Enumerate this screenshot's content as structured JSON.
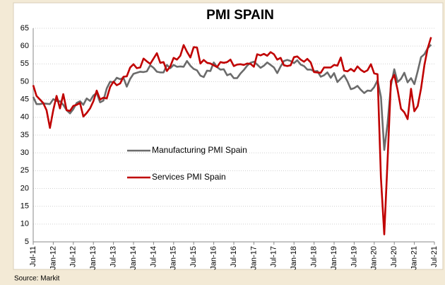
{
  "chart_data": {
    "type": "line",
    "title": "PMI SPAIN",
    "source": "Source: Markit",
    "categories": [
      "Jul-11",
      null,
      null,
      null,
      null,
      null,
      "Jan-12",
      null,
      null,
      null,
      null,
      null,
      "Jul-12",
      null,
      null,
      null,
      null,
      null,
      "Jan-13",
      null,
      null,
      null,
      null,
      null,
      "Jul-13",
      null,
      null,
      null,
      null,
      null,
      "Jan-14",
      null,
      null,
      null,
      null,
      null,
      "Jul-14",
      null,
      null,
      null,
      null,
      null,
      "Jan-15",
      null,
      null,
      null,
      null,
      null,
      "Jul-15",
      null,
      null,
      null,
      null,
      null,
      "Jan-16",
      null,
      null,
      null,
      null,
      null,
      "Jul-16",
      null,
      null,
      null,
      null,
      null,
      "Jan-17",
      null,
      null,
      null,
      null,
      null,
      "Jul-17",
      null,
      null,
      null,
      null,
      null,
      "Jan-18",
      null,
      null,
      null,
      null,
      null,
      "Jul-18",
      null,
      null,
      null,
      null,
      null,
      "Jan-19",
      null,
      null,
      null,
      null,
      null,
      "Jul-19",
      null,
      null,
      null,
      null,
      null,
      "Jan-20",
      null,
      null,
      null,
      null,
      null,
      "Jul-20",
      null,
      null,
      null,
      null,
      null,
      "Jan-21",
      null,
      null,
      null,
      null,
      null,
      "Jul-21"
    ],
    "series": [
      {
        "name": "Manufacturing PMI Spain",
        "color": "#6b6b6b",
        "values": [
          45.7,
          43.7,
          43.7,
          43.9,
          43.8,
          43.7,
          45.1,
          44.6,
          44.5,
          43.5,
          42.0,
          41.1,
          42.3,
          44.0,
          44.5,
          43.5,
          45.3,
          44.6,
          46.1,
          46.8,
          44.2,
          44.7,
          48.1,
          50.0,
          49.8,
          51.1,
          50.7,
          51.1,
          48.6,
          50.8,
          52.2,
          52.5,
          52.8,
          52.7,
          52.9,
          54.6,
          53.9,
          52.8,
          52.6,
          52.6,
          54.7,
          53.8,
          54.7,
          54.2,
          54.3,
          54.2,
          55.8,
          54.5,
          53.6,
          53.2,
          51.7,
          51.3,
          53.1,
          53.0,
          55.4,
          54.1,
          53.4,
          53.5,
          51.8,
          52.2,
          51.0,
          51.0,
          52.3,
          53.3,
          54.5,
          55.3,
          55.6,
          54.8,
          53.9,
          54.5,
          55.4,
          54.7,
          54.0,
          52.4,
          54.3,
          55.8,
          56.1,
          55.8,
          55.2,
          56.0,
          54.8,
          54.4,
          53.4,
          53.4,
          52.9,
          53.0,
          51.4,
          51.8,
          52.6,
          51.1,
          52.4,
          49.9,
          50.9,
          51.8,
          50.1,
          47.9,
          48.2,
          48.8,
          47.7,
          46.8,
          47.5,
          47.4,
          48.5,
          50.4,
          45.7,
          30.8,
          38.3,
          49.0,
          53.5,
          49.9,
          50.8,
          52.5,
          49.8,
          51.0,
          49.3,
          52.9,
          56.9,
          57.7,
          59.4,
          60.4,
          null
        ]
      },
      {
        "name": "Services PMI Spain",
        "color": "#c00000",
        "values": [
          49.0,
          46.0,
          45.0,
          44.0,
          42.0,
          37.0,
          42.0,
          46.0,
          42.5,
          46.5,
          42.0,
          41.8,
          43.2,
          43.5,
          44.0,
          40.2,
          41.2,
          42.5,
          44.5,
          47.5,
          45.0,
          45.5,
          45.3,
          48.5,
          50.0,
          49.0,
          49.5,
          51.4,
          51.5,
          54.0,
          54.9,
          53.8,
          54.0,
          56.5,
          55.7,
          55.0,
          56.5,
          58.0,
          55.3,
          55.5,
          53.0,
          54.3,
          56.7,
          56.2,
          57.3,
          60.3,
          58.4,
          56.8,
          59.7,
          59.6,
          55.1,
          56.1,
          55.3,
          55.1,
          54.6,
          54.1,
          55.5,
          55.3,
          55.5,
          56.2,
          54.4,
          54.8,
          54.9,
          54.7,
          55.1,
          55.0,
          54.2,
          57.7,
          57.4,
          57.8,
          57.3,
          58.3,
          57.7,
          56.2,
          56.7,
          54.6,
          54.4,
          54.6,
          56.9,
          57.1,
          56.2,
          55.6,
          56.4,
          55.4,
          52.7,
          52.6,
          52.5,
          54.0,
          54.0,
          54.0,
          54.7,
          54.5,
          56.8,
          53.1,
          52.9,
          53.6,
          52.9,
          54.3,
          53.3,
          52.7,
          53.2,
          54.9,
          52.3,
          52.1,
          23.0,
          7.1,
          27.9,
          50.2,
          51.9,
          47.7,
          42.4,
          41.4,
          39.5,
          48.0,
          41.7,
          43.1,
          48.1,
          54.6,
          59.4,
          62.5,
          null
        ]
      }
    ],
    "ylim": [
      5,
      65
    ],
    "yticks": [
      5,
      10,
      15,
      20,
      25,
      30,
      35,
      40,
      45,
      50,
      55,
      60,
      65
    ],
    "grid": true,
    "legend": "center"
  }
}
